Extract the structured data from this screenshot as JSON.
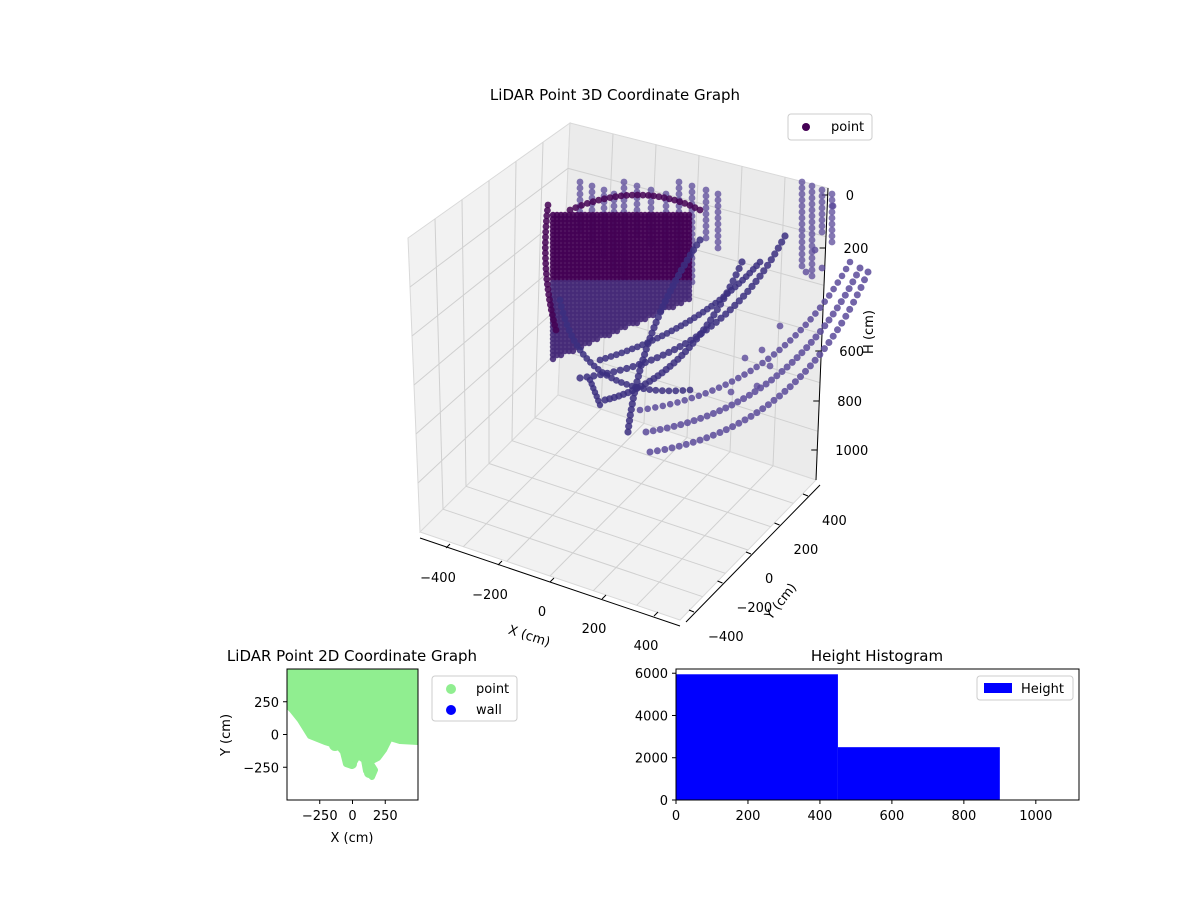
{
  "colors": {
    "point3d_dark": "#440154",
    "point3d_mid": "#3b2f80",
    "point3d_light": "#5b4a9a",
    "point2d": "#90ee90",
    "wall": "#0000ff",
    "hist": "#0000ff"
  },
  "chart_data": [
    {
      "type": "scatter",
      "projection": "3d",
      "title": "LiDAR Point 3D Coordinate Graph",
      "xlabel": "X (cm)",
      "ylabel": "Y (cm)",
      "zlabel": "H (cm)",
      "x_ticks": [
        "−400",
        "−200",
        "0",
        "200",
        "400"
      ],
      "y_ticks": [
        "−400",
        "−200",
        "0",
        "200",
        "400"
      ],
      "z_ticks": [
        "0",
        "200",
        "600",
        "800",
        "1000"
      ],
      "z_inverted": true,
      "grid": true,
      "legend": [
        "point"
      ],
      "legend_position": "top-right"
    },
    {
      "type": "scatter",
      "title": "LiDAR Point 2D Coordinate Graph",
      "xlabel": "X (cm)",
      "ylabel": "Y (cm)",
      "xlim": [
        -500,
        500
      ],
      "ylim": [
        -500,
        500
      ],
      "x_ticks": [
        "−250",
        "0",
        "250"
      ],
      "y_ticks": [
        "250",
        "0",
        "−250"
      ],
      "legend": [
        "point",
        "wall"
      ],
      "legend_position": "outside-right",
      "series": [
        {
          "name": "point",
          "color": "#90ee90"
        },
        {
          "name": "wall",
          "color": "#0000ff"
        }
      ]
    },
    {
      "type": "bar",
      "title": "Height Histogram",
      "xlim": [
        0,
        1120
      ],
      "ylim": [
        0,
        6200
      ],
      "x_ticks": [
        "0",
        "200",
        "400",
        "600",
        "800",
        "1000"
      ],
      "y_ticks": [
        "0",
        "2000",
        "4000",
        "6000"
      ],
      "legend": [
        "Height"
      ],
      "legend_position": "top-right",
      "bins": [
        {
          "x0": 0,
          "x1": 450,
          "count": 5950
        },
        {
          "x0": 450,
          "x1": 900,
          "count": 2500
        }
      ]
    }
  ]
}
